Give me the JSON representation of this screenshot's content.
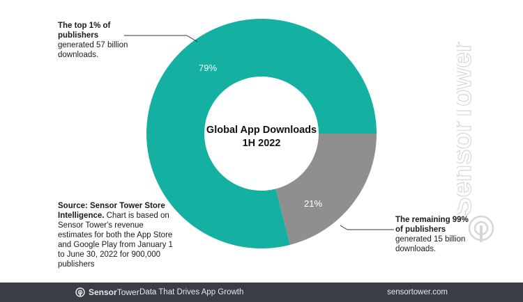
{
  "chart_data": {
    "type": "pie",
    "donut": true,
    "title_lines": [
      "Global App Downloads",
      "1H 2022"
    ],
    "slices": [
      {
        "label": "The top 1% of publishers",
        "value": 79,
        "display": "79%",
        "color": "#14b0a1"
      },
      {
        "label": "The remaining 99% of publishers",
        "value": 21,
        "display": "21%",
        "color": "#8f8f8f"
      }
    ]
  },
  "annotations": {
    "top": {
      "bold": "The top 1% of publishers",
      "text": "generated 57 billion downloads."
    },
    "bottom": {
      "bold": "The remaining 99% of publishers",
      "text": "generated 15 billion downloads."
    },
    "source": {
      "bold": "Source: Sensor Tower Store Intelligence.",
      "text": "Chart is based on Sensor Tower's revenue estimates for both the App Store and Google Play from January 1 to June 30, 2022 for 900,000 publishers"
    }
  },
  "watermark": {
    "text": "SensorTower"
  },
  "footer": {
    "brand_bold": "Sensor",
    "brand_light": "Tower",
    "tagline": "Data That Drives App Growth",
    "url": "sensortower.com",
    "background": "#3a3d45"
  },
  "colors": {
    "accent": "#14b0a1",
    "secondary": "#8f8f8f",
    "leader": "#333333"
  }
}
